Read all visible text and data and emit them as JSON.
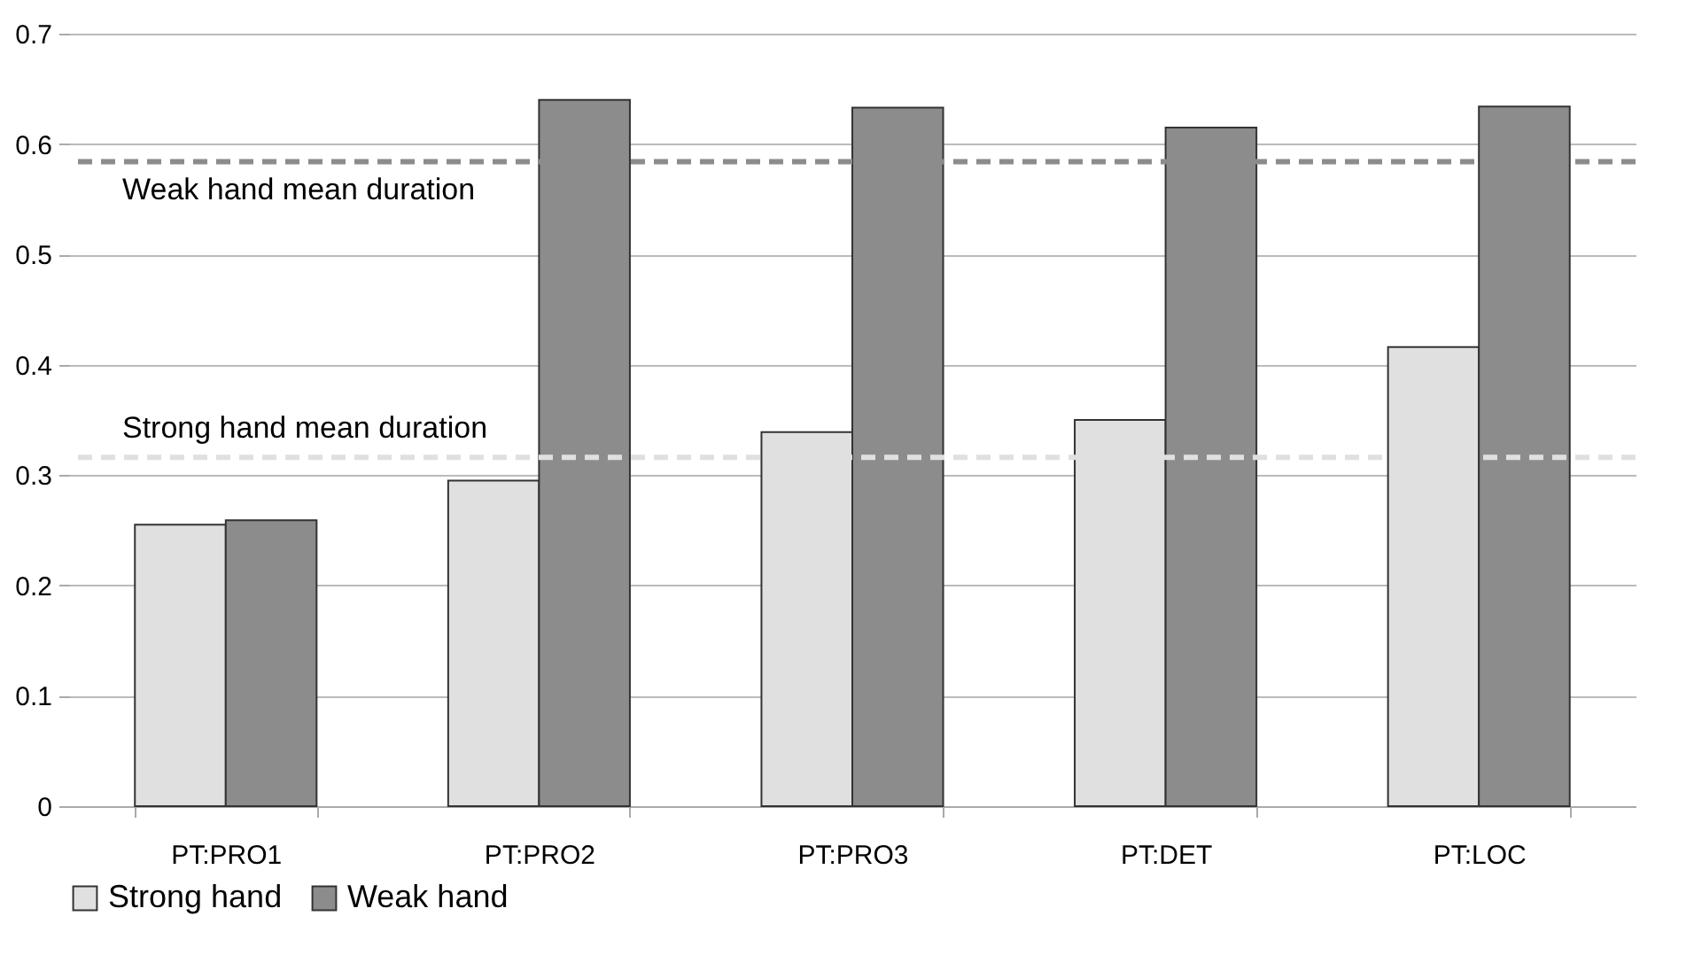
{
  "chart_data": {
    "type": "bar",
    "categories": [
      "PT:PRO1",
      "PT:PRO2",
      "PT:PRO3",
      "PT:DET",
      "PT:LOC"
    ],
    "series": [
      {
        "name": "Strong hand",
        "color": "#e0e0e0",
        "values": [
          0.255,
          0.295,
          0.339,
          0.35,
          0.416
        ]
      },
      {
        "name": "Weak hand",
        "color": "#8c8c8c",
        "values": [
          0.259,
          0.64,
          0.633,
          0.615,
          0.634
        ]
      }
    ],
    "ylim": [
      0,
      0.7
    ],
    "yticks": [
      {
        "value": 0,
        "label": "0"
      },
      0.1,
      0.2,
      0.3,
      0.4,
      0.5,
      0.6,
      0.7
    ],
    "grid": "y",
    "legend": "bottom",
    "ref_lines": [
      {
        "axis": "y",
        "value": 0.584,
        "label": "Weak hand mean duration",
        "color": "#8c8c8c",
        "line_style": "dashed"
      },
      {
        "axis": "y",
        "value": 0.316,
        "label": "Strong hand mean duration",
        "color": "#e0e0e0",
        "line_style": "dashed"
      }
    ]
  }
}
